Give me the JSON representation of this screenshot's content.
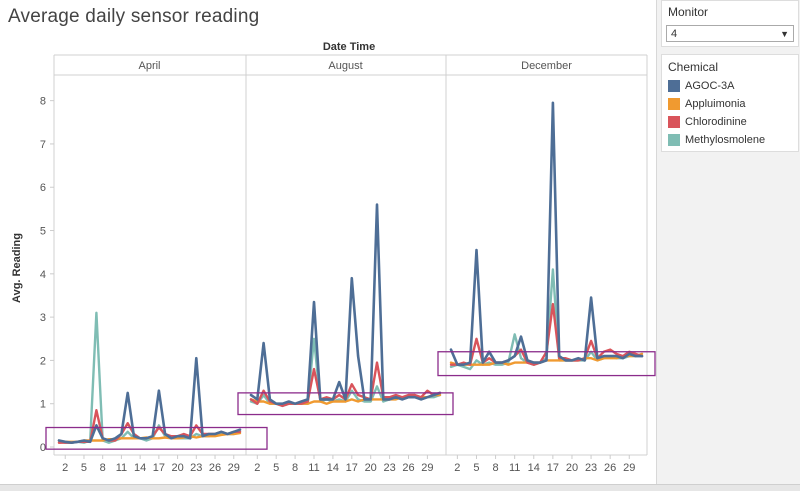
{
  "title": "Average daily sensor reading",
  "filter": {
    "label": "Monitor",
    "value": "4"
  },
  "legend": {
    "title": "Chemical",
    "items": [
      {
        "name": "AGOC-3A",
        "color": "#4e6e96"
      },
      {
        "name": "Appluimonia",
        "color": "#f09a30"
      },
      {
        "name": "Chlorodinine",
        "color": "#d9545b"
      },
      {
        "name": "Methylosmolene",
        "color": "#7fbdb4"
      }
    ]
  },
  "chart_data": {
    "type": "line",
    "title": "Average daily sensor reading",
    "column_header": "Date Time",
    "xlabel": "",
    "ylabel": "Avg. Reading",
    "ylim": [
      0,
      8.5
    ],
    "yticks": [
      0,
      1,
      2,
      3,
      4,
      5,
      6,
      7,
      8
    ],
    "xticks": [
      2,
      5,
      8,
      11,
      14,
      17,
      20,
      23,
      26,
      29
    ],
    "grid": false,
    "panels": [
      {
        "month": "April",
        "x": [
          1,
          2,
          3,
          4,
          5,
          6,
          7,
          8,
          9,
          10,
          11,
          12,
          13,
          14,
          15,
          16,
          17,
          18,
          19,
          20,
          21,
          22,
          23,
          24,
          25,
          26,
          27,
          28,
          29,
          30
        ],
        "series": [
          {
            "name": "AGOC-3A",
            "values": [
              0.15,
              0.12,
              0.1,
              0.12,
              0.15,
              0.12,
              0.5,
              0.2,
              0.15,
              0.2,
              0.3,
              1.25,
              0.25,
              0.2,
              0.2,
              0.25,
              1.3,
              0.3,
              0.2,
              0.25,
              0.25,
              0.2,
              2.05,
              0.25,
              0.3,
              0.3,
              0.35,
              0.3,
              0.35,
              0.4
            ]
          },
          {
            "name": "Appluimonia",
            "values": [
              0.1,
              0.12,
              0.12,
              0.12,
              0.15,
              0.15,
              0.15,
              0.15,
              0.18,
              0.18,
              0.2,
              0.2,
              0.2,
              0.2,
              0.22,
              0.2,
              0.2,
              0.22,
              0.2,
              0.2,
              0.22,
              0.25,
              0.22,
              0.25,
              0.25,
              0.25,
              0.28,
              0.3,
              0.3,
              0.32
            ]
          },
          {
            "name": "Chlorodinine",
            "values": [
              0.1,
              0.1,
              0.1,
              0.12,
              0.12,
              0.12,
              0.85,
              0.2,
              0.15,
              0.15,
              0.3,
              0.55,
              0.3,
              0.2,
              0.2,
              0.25,
              0.45,
              0.3,
              0.25,
              0.25,
              0.3,
              0.25,
              0.5,
              0.3,
              0.3,
              0.3,
              0.35,
              0.3,
              0.35,
              0.35
            ]
          },
          {
            "name": "Methylosmolene",
            "values": [
              0.15,
              0.1,
              0.1,
              0.12,
              0.1,
              0.15,
              3.1,
              0.15,
              0.1,
              0.15,
              0.2,
              0.35,
              0.2,
              0.2,
              0.15,
              0.2,
              0.5,
              0.25,
              0.2,
              0.2,
              0.2,
              0.2,
              0.3,
              0.25,
              0.25,
              0.3,
              0.3,
              0.3,
              0.3,
              0.35
            ]
          }
        ]
      },
      {
        "month": "August",
        "x": [
          1,
          2,
          3,
          4,
          5,
          6,
          7,
          8,
          9,
          10,
          11,
          12,
          13,
          14,
          15,
          16,
          17,
          18,
          19,
          20,
          21,
          22,
          23,
          24,
          25,
          26,
          27,
          28,
          29,
          30,
          31
        ],
        "series": [
          {
            "name": "AGOC-3A",
            "values": [
              1.2,
              1.1,
              2.4,
              1.1,
              1.0,
              1.0,
              1.05,
              1.0,
              1.05,
              1.1,
              3.35,
              1.1,
              1.1,
              1.1,
              1.5,
              1.1,
              3.9,
              2.1,
              1.1,
              1.1,
              5.6,
              1.1,
              1.1,
              1.15,
              1.1,
              1.15,
              1.15,
              1.1,
              1.15,
              1.2,
              1.25
            ]
          },
          {
            "name": "Appluimonia",
            "values": [
              1.1,
              1.05,
              1.05,
              1.0,
              1.0,
              1.0,
              1.0,
              1.0,
              1.0,
              1.0,
              1.05,
              1.05,
              1.0,
              1.05,
              1.05,
              1.05,
              1.1,
              1.05,
              1.1,
              1.1,
              1.1,
              1.1,
              1.1,
              1.1,
              1.15,
              1.15,
              1.15,
              1.15,
              1.15,
              1.2,
              1.2
            ]
          },
          {
            "name": "Chlorodinine",
            "values": [
              1.1,
              1.0,
              1.3,
              1.05,
              1.0,
              0.95,
              1.0,
              1.0,
              1.0,
              1.05,
              1.8,
              1.1,
              1.15,
              1.1,
              1.2,
              1.1,
              1.45,
              1.2,
              1.15,
              1.1,
              1.95,
              1.15,
              1.15,
              1.2,
              1.15,
              1.2,
              1.2,
              1.15,
              1.3,
              1.2,
              1.25
            ]
          },
          {
            "name": "Methylosmolene",
            "values": [
              1.05,
              1.0,
              1.2,
              1.0,
              1.0,
              0.95,
              1.0,
              1.0,
              1.0,
              1.0,
              2.5,
              1.05,
              1.1,
              1.05,
              1.1,
              1.05,
              1.3,
              1.1,
              1.05,
              1.05,
              1.4,
              1.05,
              1.1,
              1.15,
              1.1,
              1.15,
              1.2,
              1.1,
              1.15,
              1.15,
              1.2
            ]
          }
        ]
      },
      {
        "month": "December",
        "x": [
          1,
          2,
          3,
          4,
          5,
          6,
          7,
          8,
          9,
          10,
          11,
          12,
          13,
          14,
          15,
          16,
          17,
          18,
          19,
          20,
          21,
          22,
          23,
          24,
          25,
          26,
          27,
          28,
          29,
          30,
          31
        ],
        "series": [
          {
            "name": "AGOC-3A",
            "values": [
              2.25,
              1.9,
              1.9,
              1.95,
              4.55,
              1.95,
              2.2,
              1.95,
              1.95,
              2.0,
              2.1,
              2.55,
              2.0,
              1.95,
              1.95,
              2.0,
              7.95,
              2.1,
              2.0,
              2.0,
              2.05,
              2.0,
              3.45,
              2.05,
              2.1,
              2.1,
              2.1,
              2.05,
              2.15,
              2.1,
              2.1
            ]
          },
          {
            "name": "Appluimonia",
            "values": [
              1.95,
              1.9,
              1.9,
              1.9,
              1.9,
              1.9,
              1.9,
              1.95,
              1.95,
              1.9,
              1.95,
              1.95,
              1.95,
              1.95,
              1.95,
              2.0,
              2.0,
              2.0,
              2.0,
              2.0,
              2.0,
              2.05,
              2.05,
              2.0,
              2.05,
              2.05,
              2.05,
              2.1,
              2.1,
              2.1,
              2.15
            ]
          },
          {
            "name": "Chlorodinine",
            "values": [
              1.9,
              1.9,
              1.95,
              1.9,
              2.5,
              1.95,
              2.05,
              1.95,
              1.95,
              2.0,
              2.1,
              2.25,
              1.95,
              1.9,
              1.95,
              2.2,
              3.3,
              2.05,
              2.05,
              2.0,
              2.0,
              2.05,
              2.45,
              2.05,
              2.2,
              2.25,
              2.15,
              2.1,
              2.2,
              2.15,
              2.1
            ]
          },
          {
            "name": "Methylosmolene",
            "values": [
              1.85,
              1.9,
              1.85,
              1.8,
              2.0,
              1.9,
              1.95,
              1.9,
              1.9,
              1.95,
              2.6,
              2.05,
              1.95,
              1.9,
              1.95,
              2.05,
              4.1,
              2.0,
              2.0,
              2.0,
              2.0,
              2.0,
              2.2,
              2.0,
              2.05,
              2.1,
              2.05,
              2.05,
              2.1,
              2.1,
              2.1
            ]
          }
        ]
      }
    ],
    "annotations": [
      {
        "type": "box",
        "panel": 0,
        "ymin": -0.05,
        "ymax": 0.45,
        "color": "#8b2c8b"
      },
      {
        "type": "box",
        "panel": 1,
        "ymin": 0.75,
        "ymax": 1.25,
        "color": "#8b2c8b"
      },
      {
        "type": "box",
        "panel": 2,
        "ymin": 1.65,
        "ymax": 2.2,
        "color": "#8b2c8b"
      }
    ]
  }
}
